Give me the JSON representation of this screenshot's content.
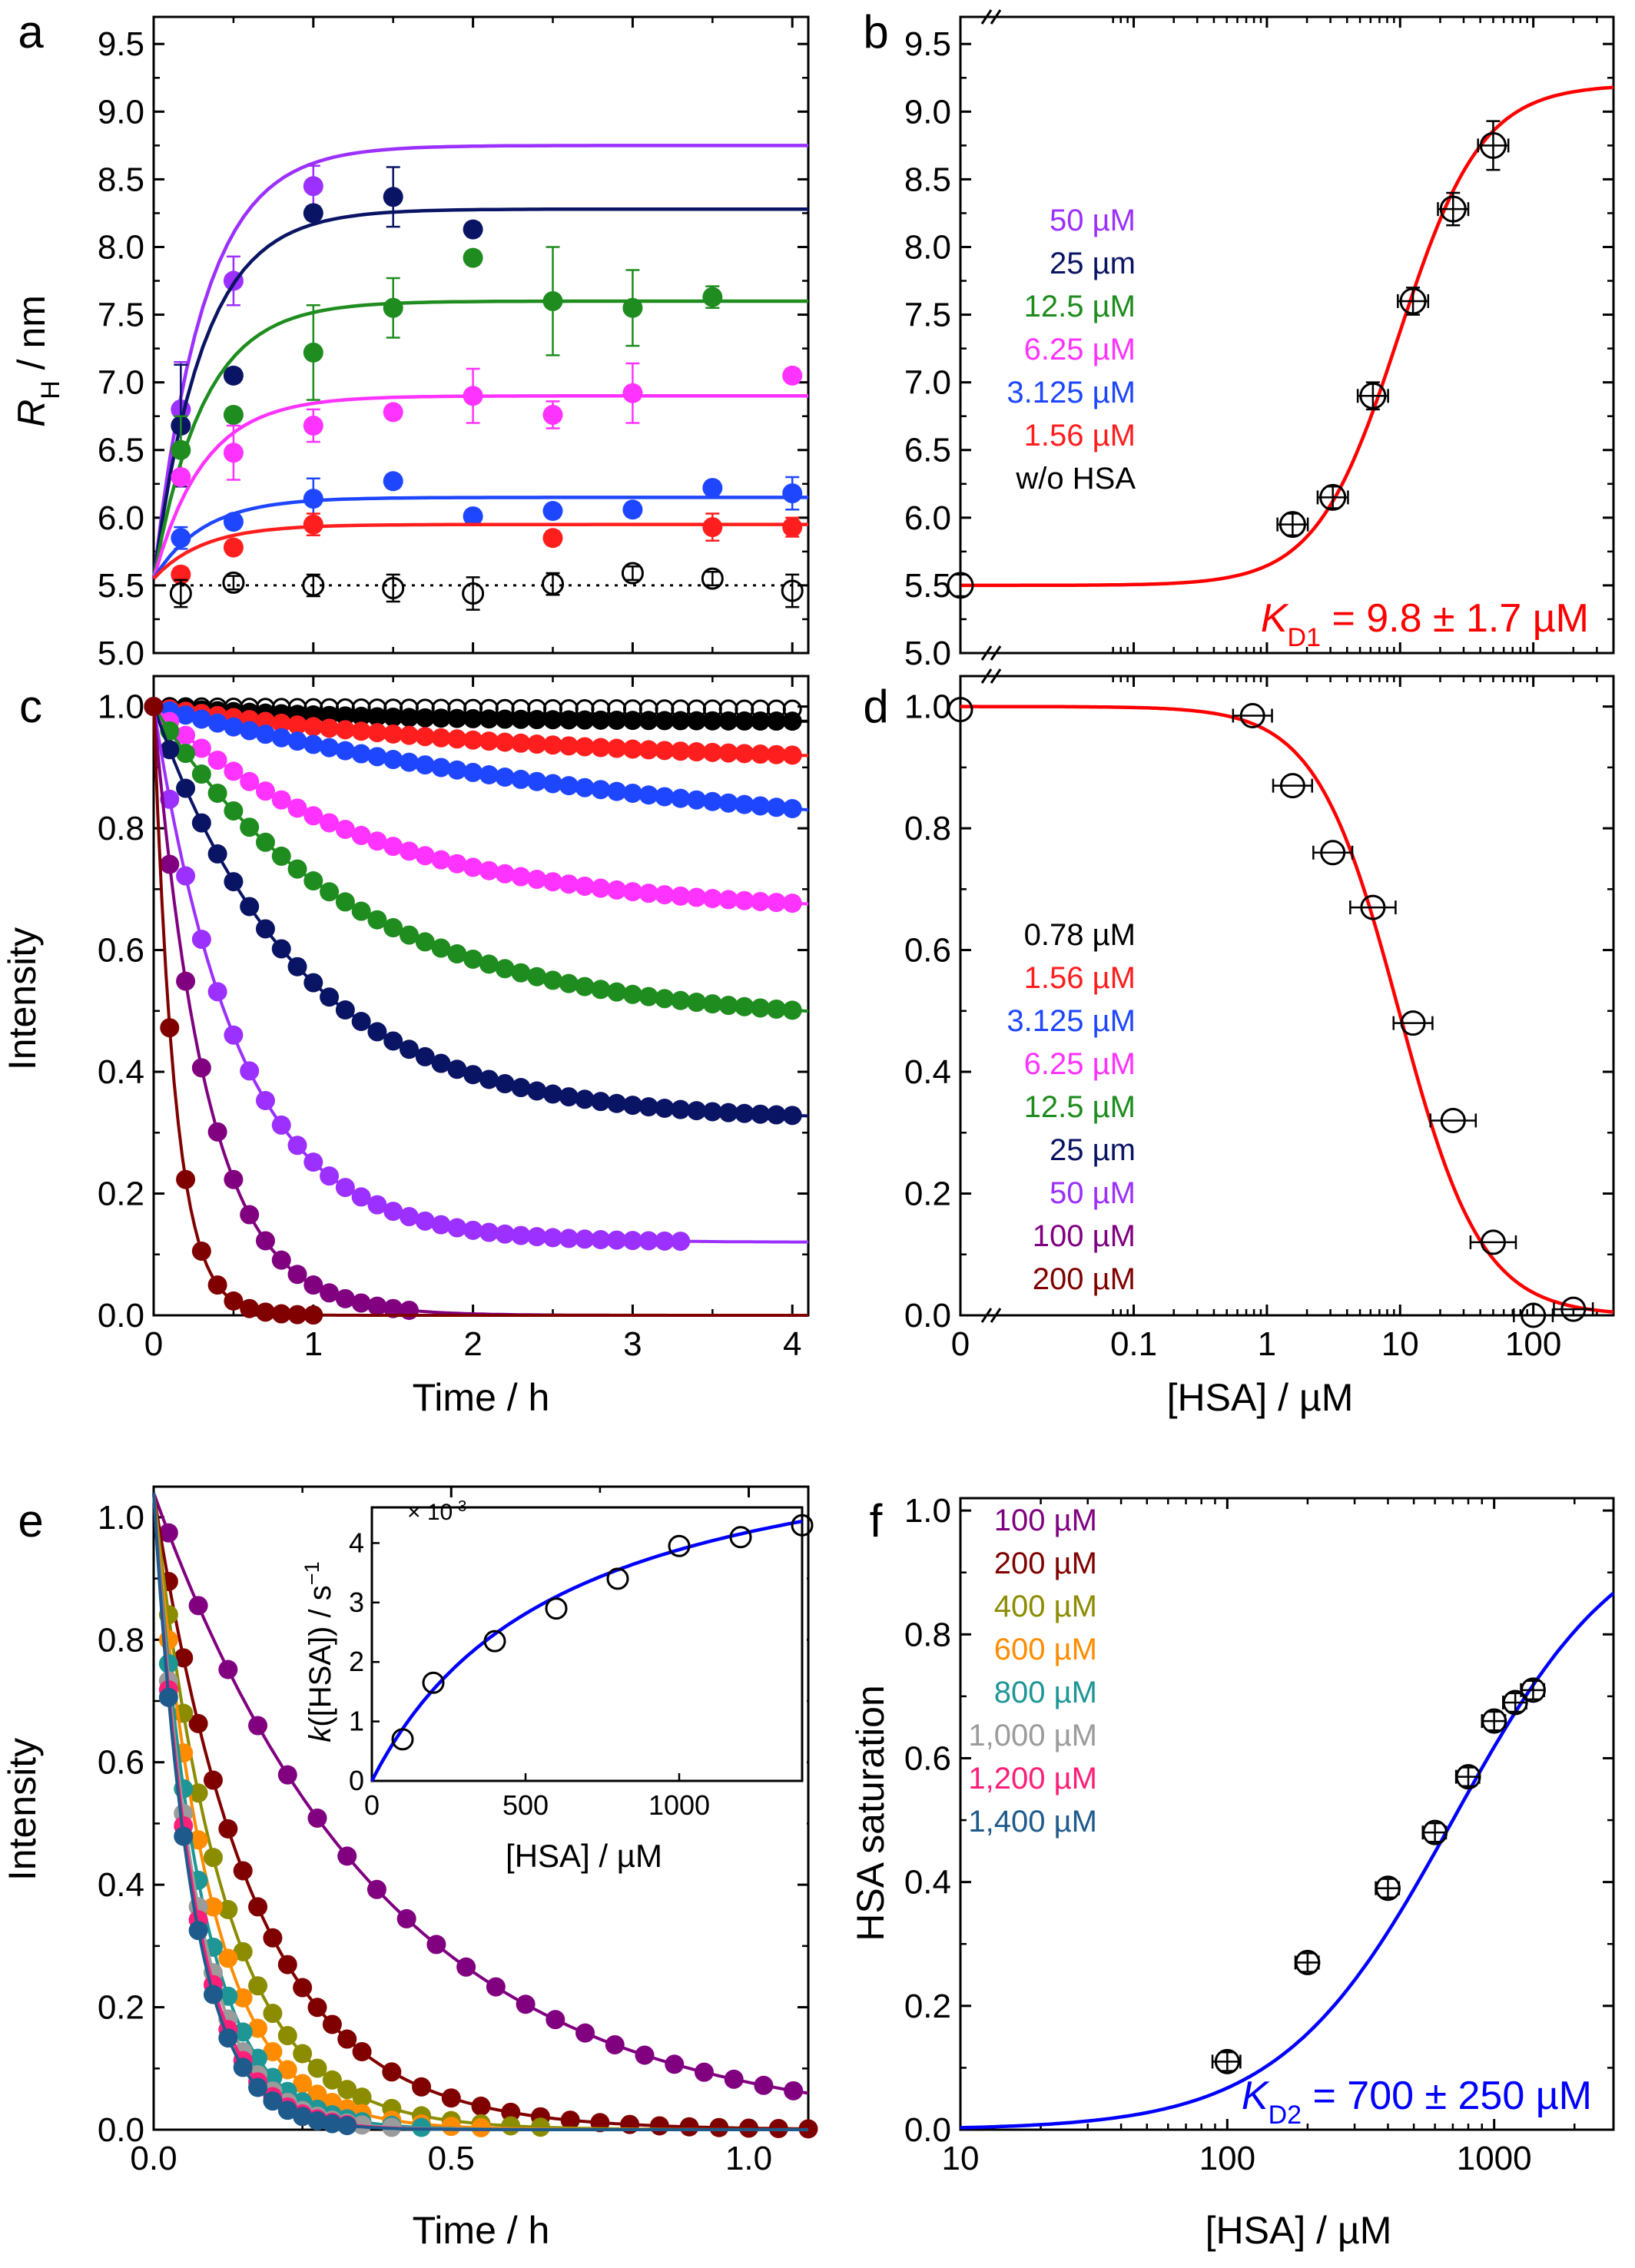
{
  "panels": [
    {
      "letter": "a",
      "xlabel": "Time / h",
      "ylabel": "R_H / nm"
    },
    {
      "letter": "b",
      "xlabel": "",
      "ylabel": ""
    },
    {
      "letter": "c",
      "xlabel": "Time / h",
      "ylabel": "Intensity"
    },
    {
      "letter": "d",
      "xlabel": "[HSA] / µM",
      "ylabel": ""
    },
    {
      "letter": "e",
      "xlabel": "Time / h",
      "ylabel": "Intensity"
    },
    {
      "letter": "f",
      "xlabel": "[HSA] / µM",
      "ylabel": "HSA saturation"
    }
  ],
  "annotations": {
    "kd1": "K_D1 = 9.8 ± 1.7 µM",
    "kd2": "K_D2 = 700 ± 250 µM",
    "inset_ylabel": "k([HSA]) / s^-1",
    "inset_xlabel": "[HSA] / µM",
    "inset_multiplier": "× 10^-3"
  },
  "colors": {
    "c50": "#9b30ff",
    "c25": "#0a1464",
    "c12": "#1e8c1e",
    "c6": "#ff33ff",
    "c3": "#1e46ff",
    "c156": "#ff1e1e",
    "cnone": "#000000",
    "c078": "#000000",
    "c100": "#800080",
    "c200": "#800000",
    "c400": "#8c8c00",
    "c600": "#ff8c00",
    "c800": "#1e9696",
    "c1000": "#9b9b9b",
    "c1200": "#ff1e78",
    "c1400": "#1e5a8c",
    "fit_red": "#ff0000",
    "fit_blue": "#0000ff"
  },
  "chart_data": [
    {
      "panel": "a",
      "type": "scatter",
      "xlabel": "Time / h",
      "ylabel": "R_H / nm",
      "xlim": [
        0,
        4.1
      ],
      "ylim": [
        5.0,
        9.7
      ],
      "xticks": [
        0,
        1,
        2,
        3,
        4
      ],
      "yticks": [
        5.0,
        5.5,
        6.0,
        6.5,
        7.0,
        7.5,
        8.0,
        8.5,
        9.0,
        9.5
      ],
      "legend": [
        "50 µM",
        "25 µm",
        "12.5 µM",
        "6.25 µM",
        "3.125 µM",
        "1.56 µM",
        "w/o HSA"
      ],
      "series": [
        {
          "name": "50 µM",
          "color": "#9b30ff",
          "fit_plateau": 8.75,
          "x": [
            0.17,
            0.5,
            1.0
          ],
          "y": [
            6.8,
            7.75,
            8.45
          ],
          "err": [
            0.35,
            0.18,
            0.15
          ]
        },
        {
          "name": "25 µm",
          "color": "#0a1464",
          "fit_plateau": 8.28,
          "x": [
            0.17,
            0.5,
            1.0,
            1.5,
            2.0
          ],
          "y": [
            6.68,
            7.05,
            8.25,
            8.37,
            8.13
          ],
          "err": [
            0.45,
            0.05,
            0.05,
            0.22,
            0.05
          ]
        },
        {
          "name": "12.5 µM",
          "color": "#1e8c1e",
          "fit_plateau": 7.6,
          "x": [
            0.17,
            0.5,
            1.0,
            1.5,
            2.0,
            2.5,
            3.0,
            3.5
          ],
          "y": [
            6.5,
            6.76,
            7.22,
            7.55,
            7.92,
            7.6,
            7.55,
            7.63
          ],
          "err": [
            0.25,
            0.05,
            0.35,
            0.22,
            0.05,
            0.4,
            0.28,
            0.08
          ]
        },
        {
          "name": "6.25 µM",
          "color": "#ff33ff",
          "fit_plateau": 6.9,
          "x": [
            0.17,
            0.5,
            1.0,
            1.5,
            2.0,
            2.5,
            3.0,
            4.0
          ],
          "y": [
            6.3,
            6.48,
            6.68,
            6.78,
            6.9,
            6.76,
            6.92,
            7.05
          ],
          "err": [
            0.05,
            0.2,
            0.12,
            0.05,
            0.2,
            0.1,
            0.22,
            0.05
          ]
        },
        {
          "name": "3.125 µM",
          "color": "#1e46ff",
          "fit_plateau": 6.15,
          "x": [
            0.17,
            0.5,
            1.0,
            1.5,
            2.0,
            2.5,
            3.0,
            3.5,
            4.0
          ],
          "y": [
            5.85,
            5.97,
            6.14,
            6.27,
            6.01,
            6.05,
            6.06,
            6.22,
            6.18
          ],
          "err": [
            0.08,
            0.05,
            0.15,
            0.05,
            0.05,
            0.05,
            0.05,
            0.05,
            0.12
          ]
        },
        {
          "name": "1.56 µM",
          "color": "#ff1e1e",
          "fit_plateau": 5.95,
          "x": [
            0.17,
            0.5,
            1.0,
            2.5,
            3.5,
            4.0
          ],
          "y": [
            5.58,
            5.78,
            5.95,
            5.85,
            5.93,
            5.93
          ],
          "err": [
            0.05,
            0.05,
            0.08,
            0.05,
            0.1,
            0.07
          ]
        },
        {
          "name": "w/o HSA",
          "color": "#000000",
          "fit_plateau": 5.5,
          "x": [
            0.17,
            0.5,
            1.0,
            1.5,
            2.0,
            2.5,
            3.0,
            3.5,
            4.0
          ],
          "y": [
            5.44,
            5.52,
            5.5,
            5.48,
            5.44,
            5.51,
            5.59,
            5.55,
            5.46
          ],
          "err": [
            0.1,
            0.05,
            0.08,
            0.1,
            0.12,
            0.08,
            0.05,
            0.05,
            0.12
          ]
        }
      ]
    },
    {
      "panel": "b",
      "type": "scatter",
      "xscale": "log",
      "xlim": [
        0.005,
        400
      ],
      "ylim": [
        5.0,
        9.7
      ],
      "yticks": [
        5.0,
        5.5,
        6.0,
        6.5,
        7.0,
        7.5,
        8.0,
        8.5,
        9.0,
        9.5
      ],
      "fit": {
        "y0": 5.5,
        "ymax": 9.2,
        "kd": 9.8,
        "n": 1.4,
        "color": "#ff0000"
      },
      "points": {
        "x": [
          0.005,
          1.56,
          3.125,
          6.25,
          12.5,
          25,
          50
        ],
        "y": [
          5.5,
          5.95,
          6.15,
          6.9,
          7.6,
          8.28,
          8.75
        ],
        "err": [
          0.08,
          0.08,
          0.08,
          0.1,
          0.1,
          0.12,
          0.18
        ]
      }
    },
    {
      "panel": "c",
      "type": "line",
      "xlabel": "Time / h",
      "ylabel": "Intensity",
      "xlim": [
        0,
        4.1
      ],
      "ylim": [
        0,
        1.05
      ],
      "xticks": [
        0,
        1,
        2,
        3,
        4
      ],
      "yticks": [
        0.0,
        0.2,
        0.4,
        0.6,
        0.8,
        1.0
      ],
      "legend": [
        "0.78 µM",
        "1.56 µM",
        "3.125 µM",
        "6.25 µM",
        "12.5 µM",
        "25 µm",
        "50 µM",
        "100 µM",
        "200 µM"
      ],
      "series": [
        {
          "name": "w/o HSA",
          "color": "#000000",
          "hollow": true,
          "plateau": 0.995,
          "rate": 0.5,
          "tmax": 4.1
        },
        {
          "name": "0.78 µM",
          "color": "#000000",
          "plateau": 0.975,
          "rate": 0.8,
          "tmax": 4.1
        },
        {
          "name": "1.56 µM",
          "color": "#ff1e1e",
          "plateau": 0.9,
          "rate": 0.4,
          "tmax": 4.1
        },
        {
          "name": "3.125 µM",
          "color": "#1e46ff",
          "plateau": 0.76,
          "rate": 0.3,
          "tmax": 4.1
        },
        {
          "name": "6.25 µM",
          "color": "#ff33ff",
          "plateau": 0.66,
          "rate": 0.75,
          "tmax": 4.1
        },
        {
          "name": "12.5 µM",
          "color": "#1e8c1e",
          "plateau": 0.48,
          "rate": 0.8,
          "tmax": 4.1
        },
        {
          "name": "25 µm",
          "color": "#0a1464",
          "plateau": 0.32,
          "rate": 1.1,
          "tmax": 4.1
        },
        {
          "name": "50 µM",
          "color": "#9b30ff",
          "plateau": 0.12,
          "rate": 1.9,
          "tmax": 3.35
        },
        {
          "name": "100 µM",
          "color": "#800080",
          "plateau": 0.0,
          "rate": 3.0,
          "tmax": 1.6
        },
        {
          "name": "200 µM",
          "color": "#800000",
          "plateau": 0.0,
          "rate": 7.5,
          "tmax": 1.0
        }
      ]
    },
    {
      "panel": "d",
      "type": "scatter",
      "xscale": "log",
      "xlabel": "[HSA] / µM",
      "xlim": [
        0.005,
        400
      ],
      "ylim": [
        0,
        1.05
      ],
      "yticks": [
        0.0,
        0.2,
        0.4,
        0.6,
        0.8,
        1.0
      ],
      "xticklabels": [
        "0",
        "0.1",
        "1",
        "10",
        "100"
      ],
      "fit": {
        "kd": 9.8,
        "n": 1.4,
        "color": "#ff0000"
      },
      "points": {
        "x": [
          0.005,
          0.78,
          1.56,
          3.125,
          6.25,
          12.5,
          25,
          50,
          100,
          200
        ],
        "y": [
          0.995,
          0.985,
          0.87,
          0.76,
          0.67,
          0.48,
          0.32,
          0.12,
          0.0,
          0.01
        ],
        "xerr_frac": [
          0,
          0.25,
          0.25,
          0.25,
          0.3,
          0.25,
          0.3,
          0.3,
          0.25,
          0.25
        ]
      }
    },
    {
      "panel": "e",
      "type": "line",
      "xlabel": "Time / h",
      "ylabel": "Intensity",
      "xlim": [
        0,
        1.1
      ],
      "ylim": [
        0,
        1.05
      ],
      "xticks": [
        0.0,
        0.5,
        1.0
      ],
      "yticks": [
        0.0,
        0.2,
        0.4,
        0.6,
        0.8,
        1.0
      ],
      "legend": [
        "100 µM",
        "200 µM",
        "400 µM",
        "600 µM",
        "800 µM",
        "1,000 µM",
        "1,200 µM",
        "1,400 µM"
      ],
      "series": [
        {
          "name": "100 µM",
          "color": "#800080",
          "k": 2.6,
          "tmax": 1.1
        },
        {
          "name": "200 µM",
          "color": "#800000",
          "k": 6.0,
          "tmax": 1.1
        },
        {
          "name": "400 µM",
          "color": "#8c8c00",
          "k": 8.5,
          "tmax": 0.7
        },
        {
          "name": "600 µM",
          "color": "#ff8c00",
          "k": 10.5,
          "tmax": 0.55
        },
        {
          "name": "800 µM",
          "color": "#1e9696",
          "k": 12.5,
          "tmax": 0.45
        },
        {
          "name": "1,000 µM",
          "color": "#9b9b9b",
          "k": 14.0,
          "tmax": 0.4
        },
        {
          "name": "1,200 µM",
          "color": "#ff1e78",
          "k": 14.8,
          "tmax": 0.35
        },
        {
          "name": "1,400 µM",
          "color": "#1e5a8c",
          "k": 15.5,
          "tmax": 0.35
        }
      ],
      "inset": {
        "xlim": [
          0,
          1400
        ],
        "ylim": [
          0,
          4.6
        ],
        "xticks": [
          0,
          500,
          1000
        ],
        "yticks": [
          0,
          1,
          2,
          3,
          4
        ],
        "x": [
          100,
          200,
          400,
          600,
          800,
          1000,
          1200,
          1400
        ],
        "y": [
          0.7,
          1.65,
          2.35,
          2.9,
          3.4,
          3.95,
          4.1,
          4.3
        ],
        "fit": {
          "kmax": 6.3,
          "kd": 620
        }
      }
    },
    {
      "panel": "f",
      "type": "scatter",
      "xscale": "log",
      "xlabel": "[HSA] / µM",
      "ylabel": "HSA saturation",
      "xlim": [
        10,
        2800
      ],
      "ylim": [
        0,
        1.02
      ],
      "xticks": [
        10,
        100,
        1000
      ],
      "yticks": [
        0.0,
        0.2,
        0.4,
        0.6,
        0.8,
        1.0
      ],
      "fit": {
        "kd": 700,
        "n": 1.35,
        "color": "#0000ff"
      },
      "points": {
        "x": [
          100,
          200,
          400,
          600,
          800,
          1000,
          1200,
          1400
        ],
        "y": [
          0.11,
          0.27,
          0.39,
          0.48,
          0.57,
          0.66,
          0.69,
          0.71
        ],
        "xerr_frac": [
          0.12,
          0.1,
          0.1,
          0.1,
          0.1,
          0.1,
          0.1,
          0.1
        ]
      }
    }
  ]
}
